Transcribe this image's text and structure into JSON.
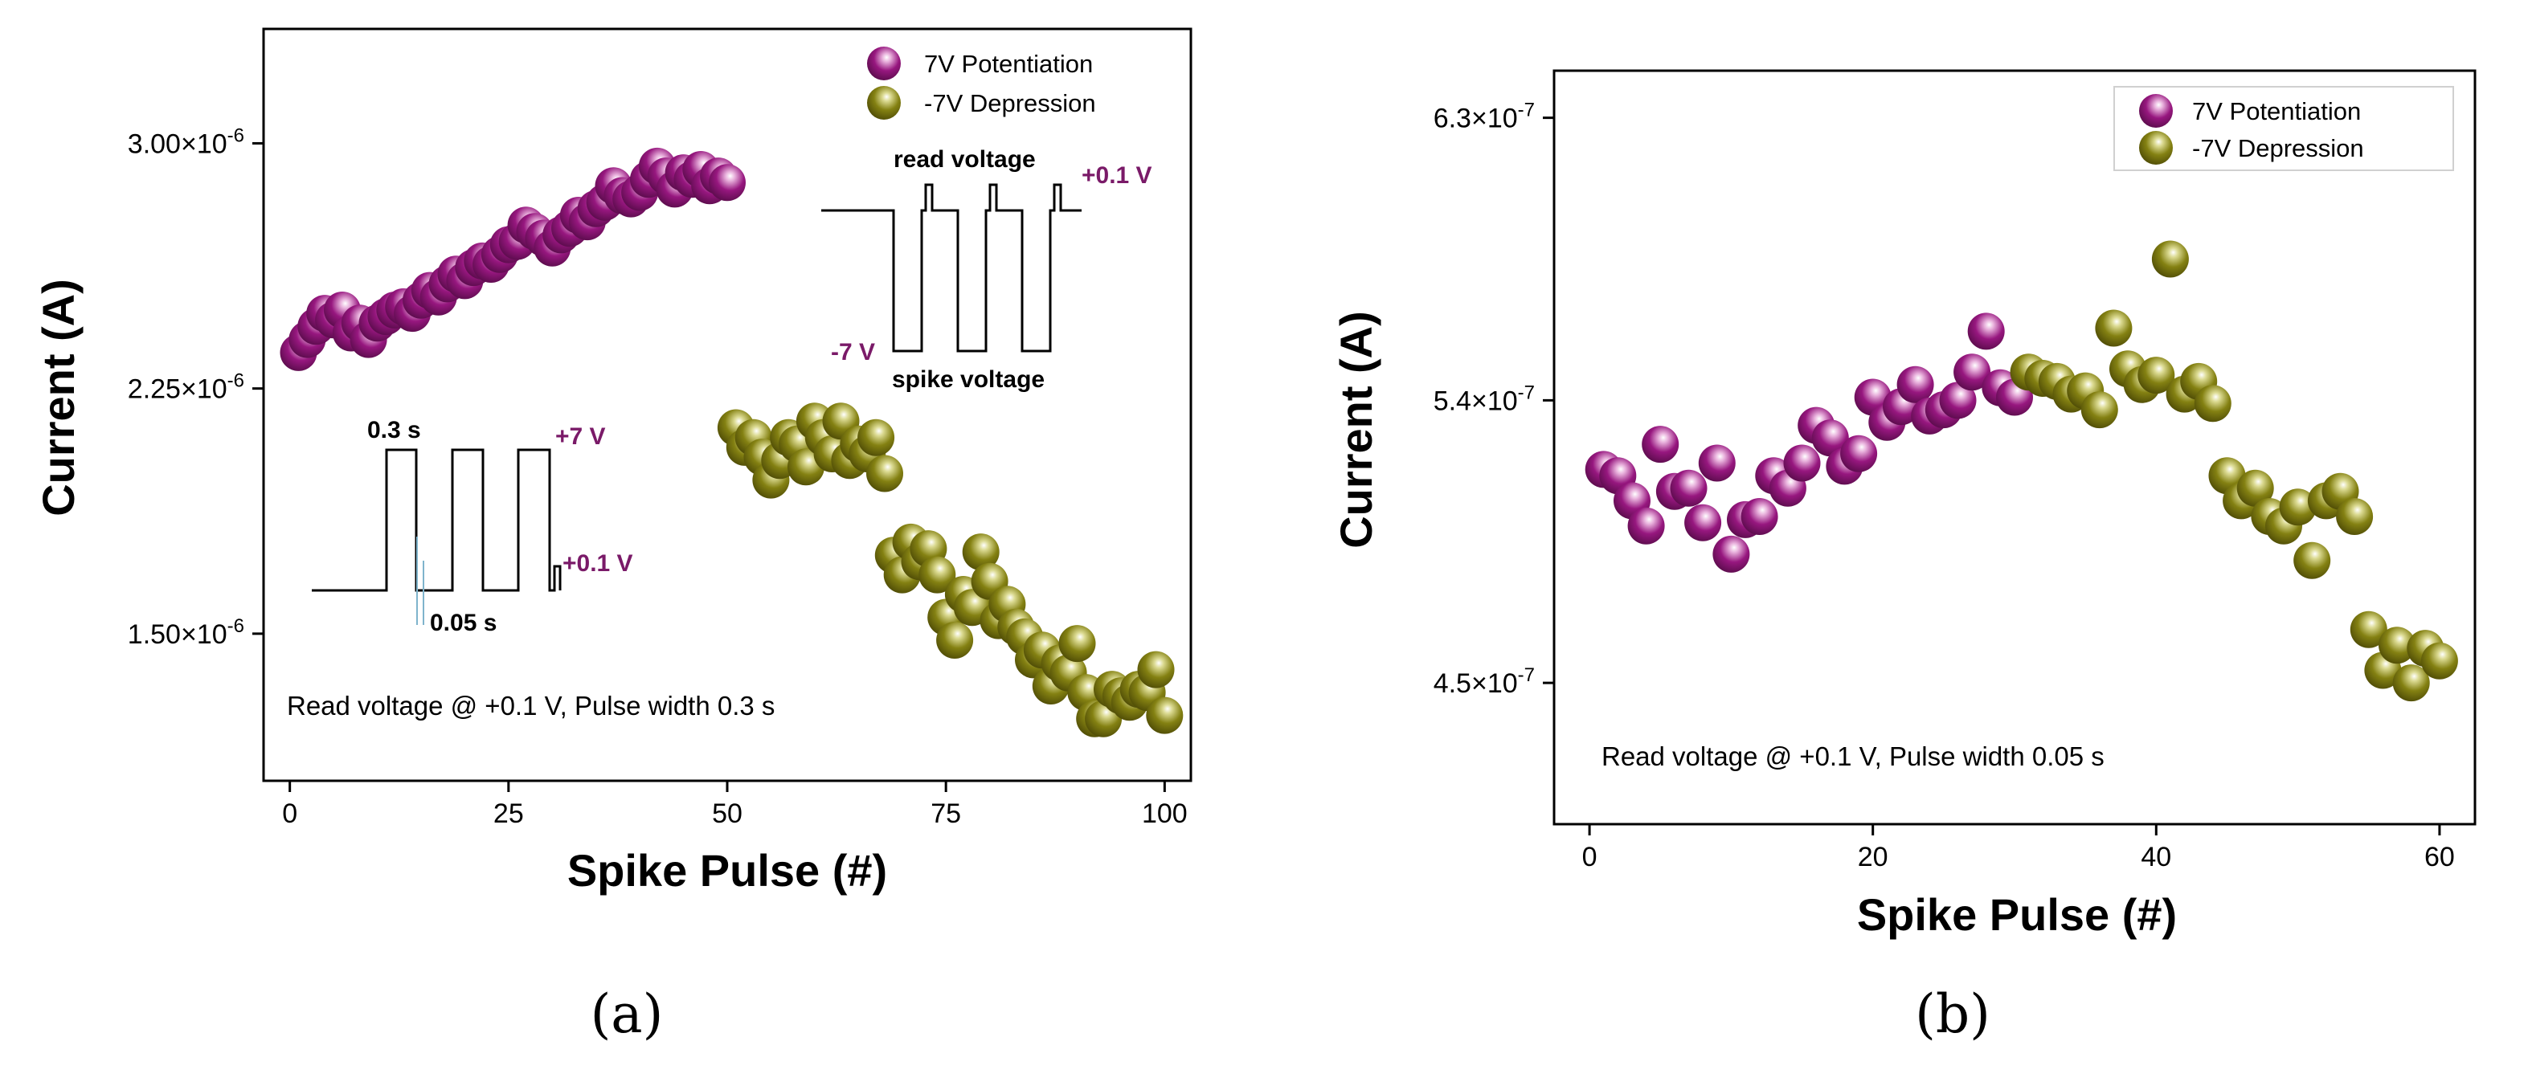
{
  "colors": {
    "potentiation": "#97177f",
    "depression": "#848112",
    "potentiation_label": "#7a1a68"
  },
  "chart_data": [
    {
      "type": "scatter",
      "panel_label": "(a)",
      "xlabel": "Spike Pulse (#)",
      "ylabel": "Current (A)",
      "xlim": [
        -3,
        103
      ],
      "ylim": [
        1.05e-06,
        3.35e-06
      ],
      "xticks": [
        0,
        25,
        50,
        75,
        100
      ],
      "xtick_labels": [
        "0",
        "25",
        "50",
        "75",
        "100"
      ],
      "yticks": [
        1.5e-06,
        2.25e-06,
        3e-06
      ],
      "ytick_mantissa": [
        "1.50×10",
        "2.25×10",
        "3.00×10"
      ],
      "ytick_exponent": "-6",
      "legend": [
        "7V Potentiation",
        "-7V Depression"
      ],
      "annotation": "Read voltage @ +0.1 V, Pulse width 0.3 s",
      "inset_potentiation": {
        "pulse_width_label": "0.3 s",
        "gap_label": "0.05 s",
        "high_label": "+7 V",
        "read_label": "+0.1 V"
      },
      "inset_depression": {
        "read_title": "read voltage",
        "read_label": "+0.1 V",
        "low_label": "-7 V",
        "spike_label": "spike voltage"
      },
      "series": [
        {
          "name": "7V Potentiation",
          "x": [
            1,
            2,
            3,
            4,
            5,
            6,
            7,
            8,
            9,
            10,
            11,
            12,
            13,
            14,
            15,
            16,
            17,
            18,
            19,
            20,
            21,
            22,
            23,
            24,
            25,
            26,
            27,
            28,
            29,
            30,
            31,
            32,
            33,
            34,
            35,
            36,
            37,
            38,
            39,
            40,
            41,
            42,
            43,
            44,
            45,
            46,
            47,
            48,
            49,
            50
          ],
          "y": [
            2.36e-06,
            2.4e-06,
            2.44e-06,
            2.48e-06,
            2.46e-06,
            2.49e-06,
            2.42e-06,
            2.45e-06,
            2.4e-06,
            2.45e-06,
            2.47e-06,
            2.49e-06,
            2.5e-06,
            2.48e-06,
            2.52e-06,
            2.55e-06,
            2.53e-06,
            2.57e-06,
            2.6e-06,
            2.58e-06,
            2.62e-06,
            2.64e-06,
            2.63e-06,
            2.66e-06,
            2.69e-06,
            2.7e-06,
            2.75e-06,
            2.73e-06,
            2.71e-06,
            2.68e-06,
            2.72e-06,
            2.74e-06,
            2.78e-06,
            2.76e-06,
            2.8e-06,
            2.82e-06,
            2.87e-06,
            2.84e-06,
            2.83e-06,
            2.85e-06,
            2.89e-06,
            2.93e-06,
            2.9e-06,
            2.86e-06,
            2.91e-06,
            2.89e-06,
            2.92e-06,
            2.87e-06,
            2.9e-06,
            2.88e-06
          ]
        },
        {
          "name": "-7V Depression",
          "x": [
            51,
            52,
            53,
            54,
            55,
            56,
            57,
            58,
            59,
            60,
            61,
            62,
            63,
            64,
            65,
            66,
            67,
            68,
            69,
            70,
            71,
            72,
            73,
            74,
            75,
            76,
            77,
            78,
            79,
            80,
            81,
            82,
            83,
            84,
            85,
            86,
            87,
            88,
            89,
            90,
            91,
            92,
            93,
            94,
            95,
            96,
            97,
            98,
            99,
            100
          ],
          "y": [
            2.13e-06,
            2.07e-06,
            2.1e-06,
            2.04e-06,
            1.97e-06,
            2.03e-06,
            2.1e-06,
            2.08e-06,
            2.01e-06,
            2.15e-06,
            2.1e-06,
            2.05e-06,
            2.15e-06,
            2.03e-06,
            2.08e-06,
            2.05e-06,
            2.1e-06,
            1.99e-06,
            1.74e-06,
            1.68e-06,
            1.78e-06,
            1.72e-06,
            1.76e-06,
            1.68e-06,
            1.55e-06,
            1.48e-06,
            1.62e-06,
            1.58e-06,
            1.75e-06,
            1.66e-06,
            1.54e-06,
            1.59e-06,
            1.52e-06,
            1.49e-06,
            1.42e-06,
            1.45e-06,
            1.34e-06,
            1.41e-06,
            1.38e-06,
            1.47e-06,
            1.32e-06,
            1.24e-06,
            1.24e-06,
            1.33e-06,
            1.31e-06,
            1.29e-06,
            1.33e-06,
            1.32e-06,
            1.39e-06,
            1.25e-06
          ]
        }
      ]
    },
    {
      "type": "scatter",
      "panel_label": "(b)",
      "xlabel": "Spike Pulse (#)",
      "ylabel": "Current (A)",
      "xlim": [
        -2.5,
        62.5
      ],
      "ylim": [
        4.05e-07,
        6.45e-07
      ],
      "xticks": [
        0,
        20,
        40,
        60
      ],
      "xtick_labels": [
        "0",
        "20",
        "40",
        "60"
      ],
      "yticks": [
        4.5e-07,
        5.4e-07,
        6.3e-07
      ],
      "ytick_mantissa": [
        "4.5×10",
        "5.4×10",
        "6.3×10"
      ],
      "ytick_exponent": "-7",
      "legend": [
        "7V Potentiation",
        "-7V Depression"
      ],
      "annotation": "Read voltage @ +0.1 V, Pulse width 0.05 s",
      "series": [
        {
          "name": "7V Potentiation",
          "x": [
            1,
            2,
            3,
            4,
            5,
            6,
            7,
            8,
            9,
            10,
            11,
            12,
            13,
            14,
            15,
            16,
            17,
            18,
            19,
            20,
            21,
            22,
            23,
            24,
            25,
            26,
            27,
            28,
            29,
            30
          ],
          "y": [
            5.18e-07,
            5.16e-07,
            5.08e-07,
            5e-07,
            5.26e-07,
            5.11e-07,
            5.12e-07,
            5.01e-07,
            5.2e-07,
            4.91e-07,
            5.02e-07,
            5.03e-07,
            5.16e-07,
            5.12e-07,
            5.2e-07,
            5.32e-07,
            5.28e-07,
            5.19e-07,
            5.23e-07,
            5.41e-07,
            5.33e-07,
            5.38e-07,
            5.45e-07,
            5.35e-07,
            5.37e-07,
            5.4e-07,
            5.49e-07,
            5.62e-07,
            5.44e-07,
            5.41e-07
          ]
        },
        {
          "name": "-7V Depression",
          "x": [
            31,
            32,
            33,
            34,
            35,
            36,
            37,
            38,
            39,
            40,
            41,
            42,
            43,
            44,
            45,
            46,
            47,
            48,
            49,
            50,
            51,
            52,
            53,
            54,
            55,
            56,
            57,
            58,
            59,
            60
          ],
          "y": [
            5.49e-07,
            5.47e-07,
            5.46e-07,
            5.42e-07,
            5.43e-07,
            5.37e-07,
            5.63e-07,
            5.5e-07,
            5.45e-07,
            5.48e-07,
            5.85e-07,
            5.42e-07,
            5.46e-07,
            5.39e-07,
            5.16e-07,
            5.08e-07,
            5.12e-07,
            5.03e-07,
            5e-07,
            5.06e-07,
            4.89e-07,
            5.08e-07,
            5.11e-07,
            5.03e-07,
            4.67e-07,
            4.54e-07,
            4.62e-07,
            4.5e-07,
            4.61e-07,
            4.57e-07
          ]
        }
      ]
    }
  ]
}
